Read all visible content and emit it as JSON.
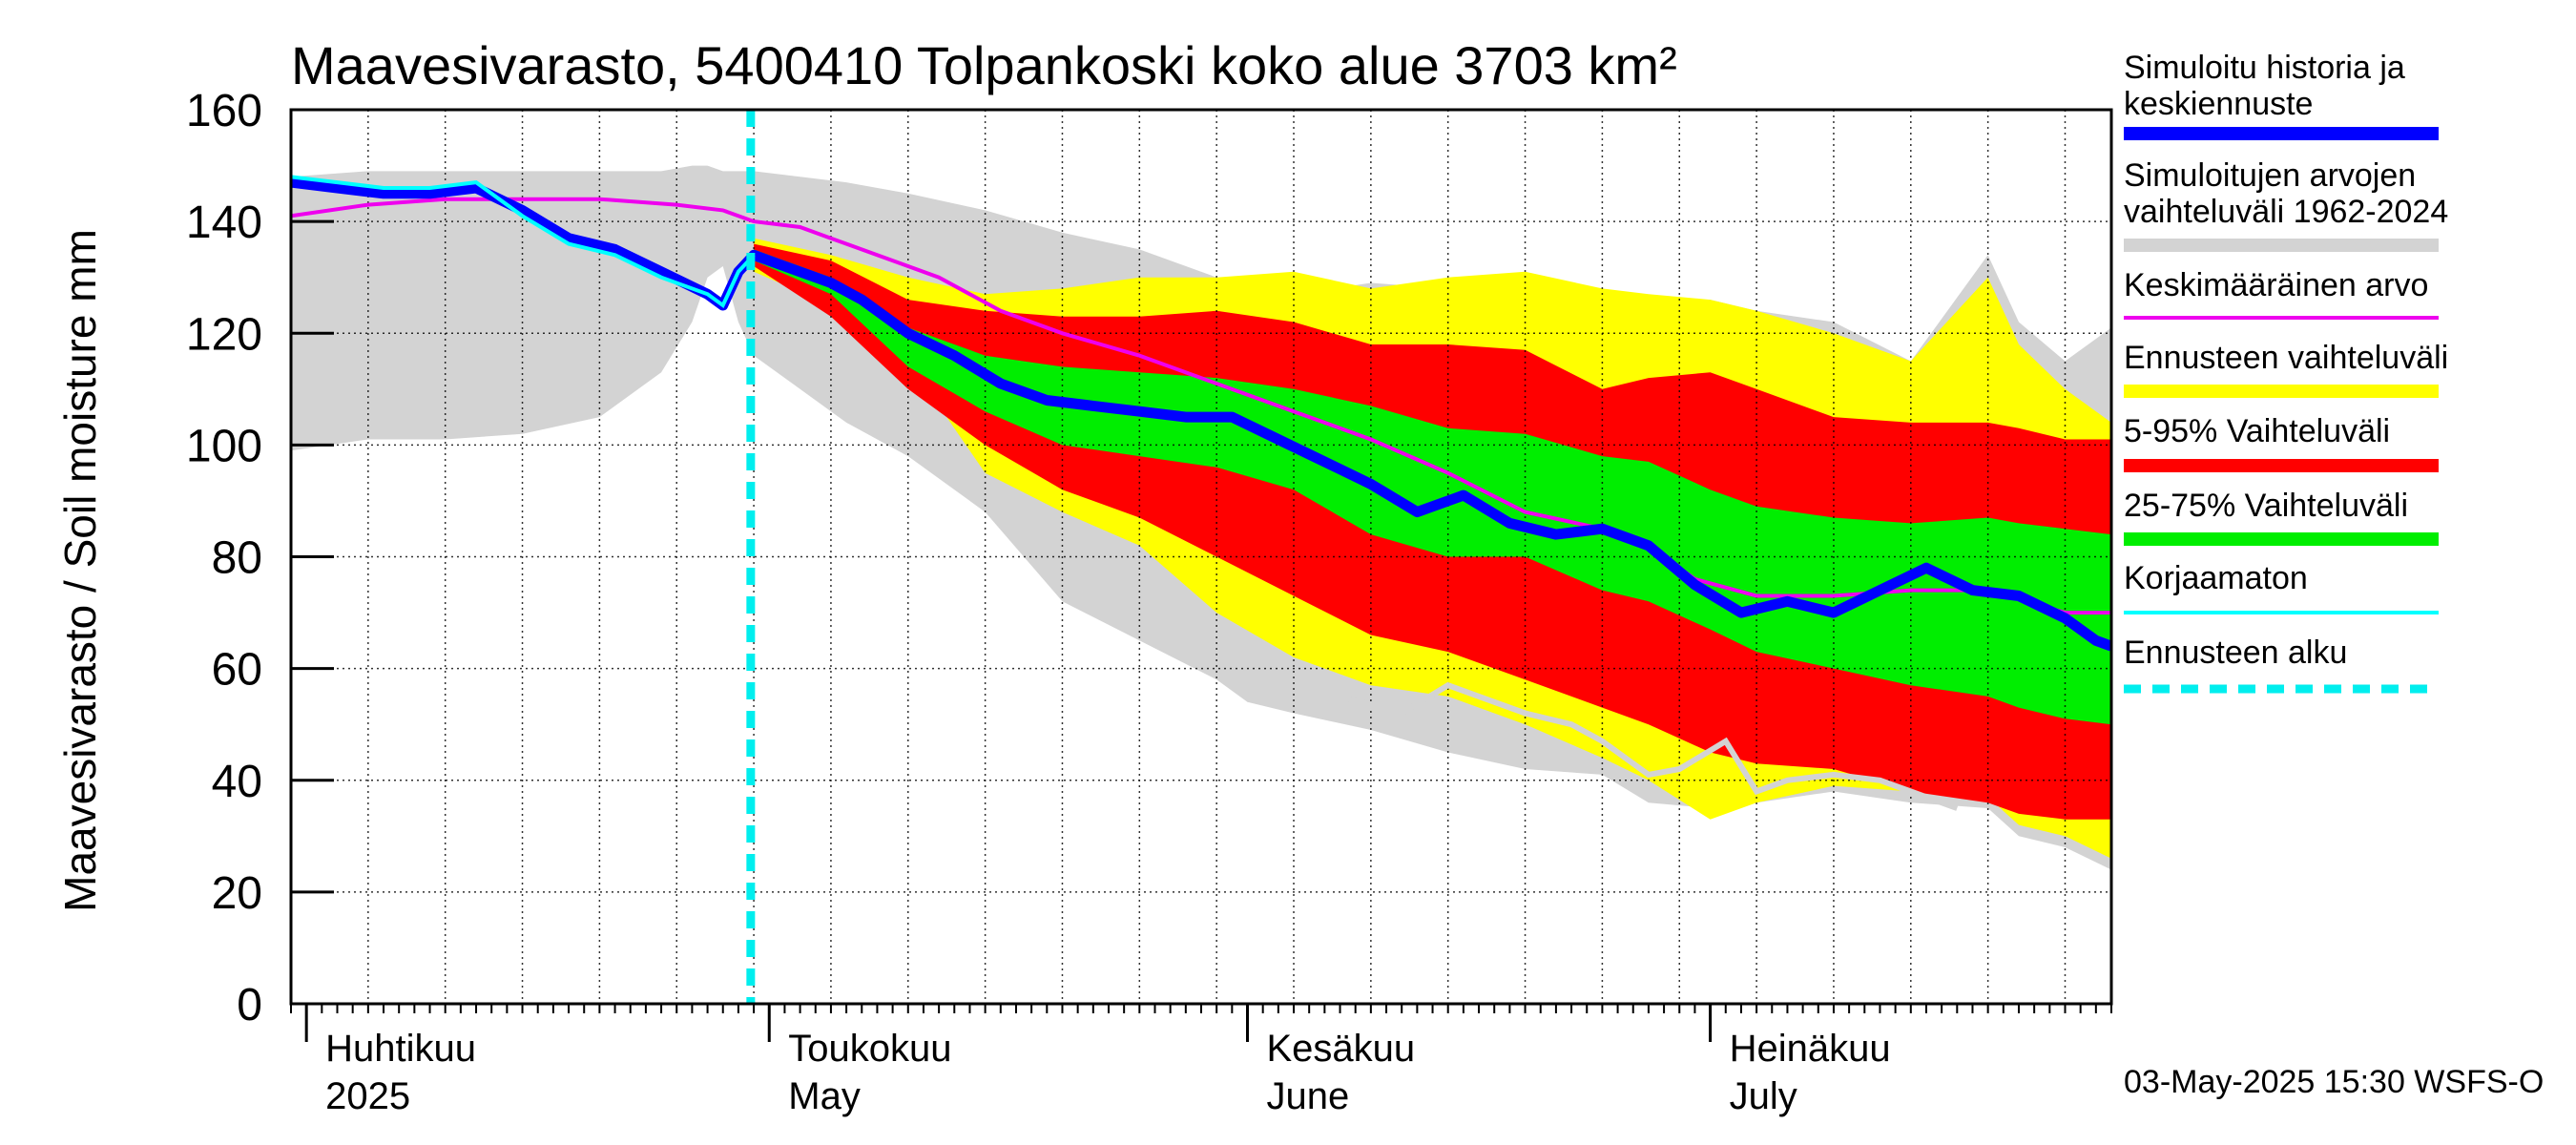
{
  "chart_data": {
    "type": "area",
    "title": "Maavesivarasto, 5400410 Tolpankoski koko alue 3703 km²",
    "ylabel": "Maavesivarasto / Soil moisture   mm",
    "ylim": [
      0,
      160
    ],
    "yticks": [
      0,
      20,
      40,
      60,
      80,
      100,
      120,
      140,
      160
    ],
    "xlim_days": [
      0,
      118
    ],
    "x_unit": "days since 2025-03-31",
    "months": [
      {
        "fi": "Huhtikuu",
        "en": "2025",
        "day": 1
      },
      {
        "fi": "Toukokuu",
        "en": "May",
        "day": 31
      },
      {
        "fi": "Kesäkuu",
        "en": "June",
        "day": 62
      },
      {
        "fi": "Heinäkuu",
        "en": "July",
        "day": 92
      }
    ],
    "forecast_start_day": 29.8,
    "series": {
      "hist_range": {
        "name": "Simuloitujen arvojen vaihteluväli 1962-2024",
        "x": [
          0,
          5,
          10,
          15,
          20,
          24,
          26,
          27,
          28,
          29,
          30,
          33,
          36,
          40,
          45,
          50,
          55,
          60,
          62,
          65,
          70,
          75,
          80,
          85,
          88,
          92,
          95,
          100,
          105,
          110,
          112,
          115,
          118
        ],
        "upper": [
          148,
          149,
          149,
          149,
          149,
          149,
          150,
          150,
          149,
          149,
          149,
          148,
          147,
          145,
          142,
          138,
          135,
          130,
          128,
          127,
          129,
          128,
          130,
          128,
          126,
          126,
          124,
          122,
          115,
          134,
          122,
          115,
          121
        ],
        "lower": [
          99,
          101,
          101,
          102,
          105,
          113,
          122,
          130,
          132,
          122,
          116,
          110,
          104,
          98,
          88,
          72,
          65,
          58,
          54,
          52,
          49,
          45,
          42,
          41,
          36,
          35,
          36,
          38,
          36,
          35,
          30,
          28,
          24
        ]
      },
      "forecast_range": {
        "name": "Ennusteen vaihteluväli",
        "x": [
          30,
          35,
          40,
          45,
          50,
          55,
          60,
          65,
          70,
          75,
          80,
          85,
          88,
          92,
          95,
          100,
          105,
          110,
          112,
          115,
          118
        ],
        "upper": [
          137,
          134,
          130,
          127,
          128,
          130,
          130,
          131,
          128,
          130,
          131,
          128,
          127,
          126,
          124,
          120,
          115,
          130,
          118,
          110,
          104
        ],
        "lower": [
          131,
          125,
          115,
          95,
          88,
          82,
          70,
          62,
          57,
          55,
          50,
          44,
          40,
          33,
          36,
          39,
          38,
          37,
          32,
          30,
          26
        ]
      },
      "p5_95": {
        "name": "5-95% Vaihteluväli",
        "x": [
          30,
          35,
          40,
          45,
          50,
          55,
          60,
          65,
          70,
          75,
          80,
          85,
          88,
          92,
          95,
          100,
          105,
          110,
          112,
          115,
          118
        ],
        "upper": [
          136,
          133,
          126,
          124,
          123,
          123,
          124,
          122,
          118,
          118,
          117,
          110,
          112,
          113,
          110,
          105,
          104,
          104,
          103,
          101,
          101
        ],
        "lower": [
          132,
          123,
          110,
          100,
          92,
          87,
          80,
          73,
          66,
          63,
          58,
          53,
          50,
          45,
          43,
          42,
          38,
          36,
          34,
          33,
          33
        ]
      },
      "p25_75": {
        "name": "25-75% Vaihteluväli",
        "x": [
          30,
          35,
          40,
          45,
          50,
          55,
          60,
          65,
          70,
          75,
          80,
          85,
          88,
          92,
          95,
          100,
          105,
          110,
          112,
          115,
          118
        ],
        "upper": [
          135,
          130,
          121,
          116,
          114,
          113,
          112,
          110,
          107,
          103,
          102,
          98,
          97,
          92,
          89,
          87,
          86,
          87,
          86,
          85,
          84
        ],
        "lower": [
          133,
          127,
          114,
          106,
          100,
          98,
          96,
          92,
          84,
          80,
          80,
          74,
          72,
          67,
          63,
          60,
          57,
          55,
          53,
          51,
          50
        ]
      },
      "median": {
        "name": "Simuloitu historia ja keskiennuste",
        "x": [
          0,
          3,
          6,
          9,
          12,
          15,
          18,
          21,
          24,
          27,
          28,
          29,
          30,
          32,
          35,
          37,
          40,
          43,
          46,
          49,
          52,
          55,
          58,
          61,
          64,
          67,
          70,
          73,
          76,
          79,
          82,
          85,
          88,
          91,
          94,
          97,
          100,
          103,
          106,
          109,
          112,
          115,
          117,
          118
        ],
        "values": [
          147,
          146,
          145,
          145,
          146,
          142,
          137,
          135,
          131,
          127,
          125,
          131,
          134,
          132,
          129,
          126,
          120,
          116,
          111,
          108,
          107,
          106,
          105,
          105,
          101,
          97,
          93,
          88,
          91,
          86,
          84,
          85,
          82,
          75,
          70,
          72,
          70,
          74,
          78,
          74,
          73,
          69,
          65,
          64
        ]
      },
      "mean": {
        "name": "Keskimääräinen arvo",
        "x": [
          0,
          5,
          10,
          15,
          20,
          25,
          28,
          30,
          33,
          35,
          38,
          42,
          46,
          50,
          55,
          60,
          65,
          70,
          75,
          80,
          85,
          88,
          91,
          95,
          100,
          105,
          110,
          115,
          118
        ],
        "values": [
          141,
          143,
          144,
          144,
          144,
          143,
          142,
          140,
          139,
          137,
          134,
          130,
          124,
          120,
          116,
          111,
          106,
          101,
          95,
          88,
          85,
          82,
          76,
          73,
          73,
          74,
          74,
          70,
          70
        ]
      },
      "uncorrected": {
        "name": "Korjaamaton",
        "x": [
          0,
          3,
          6,
          9,
          12,
          15,
          18,
          21,
          24,
          27,
          28,
          29,
          30
        ],
        "values": [
          148,
          147,
          146,
          146,
          147,
          141,
          136,
          134,
          130,
          127,
          125,
          131,
          134
        ]
      },
      "dry_year": {
        "x": [
          68,
          72,
          75,
          77,
          80,
          83,
          85,
          88,
          90,
          93,
          95,
          97,
          100,
          103,
          105,
          108
        ],
        "values": [
          55,
          52,
          57,
          55,
          52,
          50,
          47,
          41,
          42,
          47,
          38,
          40,
          41,
          40,
          38,
          35
        ]
      }
    }
  },
  "legend": {
    "items": [
      {
        "label": "Simuloitu historia ja keskiennuste",
        "color": "#0000ff"
      },
      {
        "label": "Simuloitujen arvojen vaihteluväli 1962-2024",
        "color": "#d3d3d3"
      },
      {
        "label": "Keskimääräinen arvo",
        "color": "#ee00ee"
      },
      {
        "label": "Ennusteen vaihteluväli",
        "color": "#ffff00"
      },
      {
        "label": "5-95% Vaihteluväli",
        "color": "#ff0000"
      },
      {
        "label": "25-75% Vaihteluväli",
        "color": "#00ee00"
      },
      {
        "label": "Korjaamaton",
        "color": "#00ffff"
      },
      {
        "label": "Ennusteen alku",
        "color": "#00eeee"
      }
    ]
  },
  "footer": {
    "timestamp": "03-May-2025 15:30 WSFS-O"
  }
}
